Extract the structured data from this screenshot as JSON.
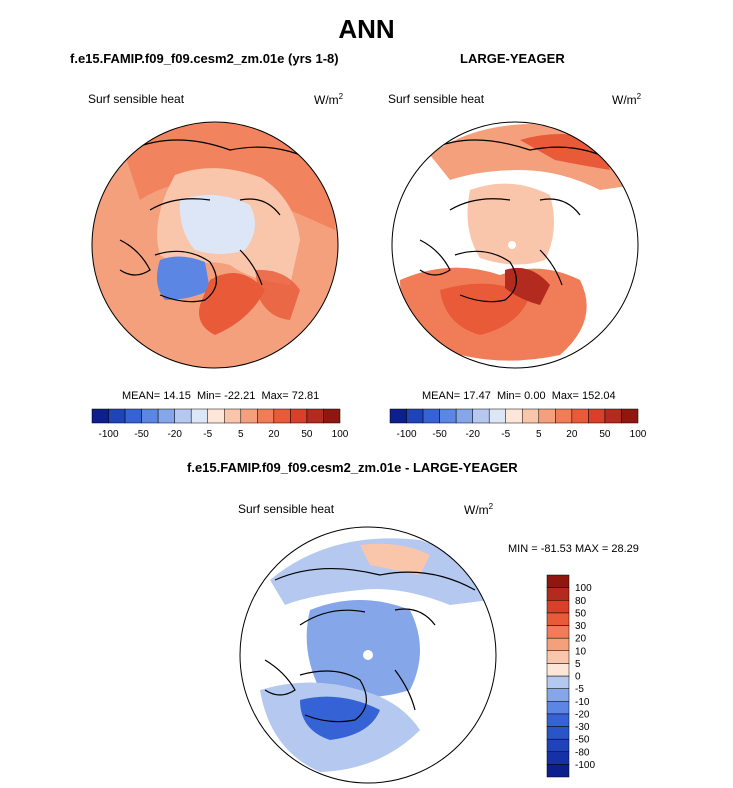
{
  "main_title": "ANN",
  "panels": [
    {
      "title": "f.e15.FAMIP.f09_f09.cesm2_zm.01e (yrs 1-8)",
      "variable": "Surf sensible heat",
      "units": "W/m",
      "units_exp": "2",
      "mean": "14.15",
      "min": "-22.21",
      "max": "72.81"
    },
    {
      "title": "LARGE-YEAGER",
      "variable": "Surf sensible heat",
      "units": "W/m",
      "units_exp": "2",
      "mean": "17.47",
      "min": "0.00",
      "max": "152.04"
    },
    {
      "title": "f.e15.FAMIP.f09_f09.cesm2_zm.01e - LARGE-YEAGER",
      "variable": "Surf sensible heat",
      "units": "W/m",
      "units_exp": "2",
      "min": "-81.53",
      "max": "28.29"
    }
  ],
  "stat_labels": {
    "mean": "MEAN=",
    "min": "Min=",
    "max": "Max=",
    "diff_min": "MIN =",
    "diff_max": "MAX ="
  },
  "chart_data": [
    {
      "type": "heatmap",
      "name": "model",
      "projection": "north polar stereographic",
      "title": "f.e15.FAMIP.f09_f09.cesm2_zm.01e (yrs 1-8)",
      "variable": "Surf sensible heat",
      "units": "W/m^2",
      "mean": 14.15,
      "min": -22.21,
      "max": 72.81,
      "colorbar": {
        "orientation": "horizontal",
        "levels": [
          -100,
          -50,
          -20,
          -5,
          5,
          20,
          50,
          100
        ],
        "tick_labels": [
          "-100",
          "-50",
          "-20",
          "-5",
          "5",
          "20",
          "50",
          "100"
        ],
        "colors": [
          "#0d1f8c",
          "#1f43b8",
          "#3563d6",
          "#5b86e3",
          "#86a6ea",
          "#b4c8f0",
          "#dde6f6",
          "#fde6d8",
          "#f9c6ab",
          "#f5a07d",
          "#f07d58",
          "#e85a38",
          "#d8402a",
          "#b32a1f",
          "#8f1710"
        ]
      },
      "fields": {
        "ocean_bg": "#f5a07d",
        "arctic_ocean": "#dde6f6",
        "cold_sea": "#5b86e3",
        "warm_current": "#e85a38",
        "land": "#f9c6ab",
        "hot_land": "#f07d58"
      }
    },
    {
      "type": "heatmap",
      "name": "observations",
      "projection": "north polar stereographic",
      "title": "LARGE-YEAGER",
      "variable": "Surf sensible heat",
      "units": "W/m^2",
      "mean": 17.47,
      "min": 0.0,
      "max": 152.04,
      "colorbar": {
        "orientation": "horizontal",
        "levels": [
          -100,
          -50,
          -20,
          -5,
          5,
          20,
          50,
          100
        ],
        "tick_labels": [
          "-100",
          "-50",
          "-20",
          "-5",
          "5",
          "20",
          "50",
          "100"
        ],
        "colors": [
          "#0d1f8c",
          "#1f43b8",
          "#3563d6",
          "#5b86e3",
          "#86a6ea",
          "#b4c8f0",
          "#dde6f6",
          "#fde6d8",
          "#f9c6ab",
          "#f5a07d",
          "#f07d58",
          "#e85a38",
          "#d8402a",
          "#b32a1f",
          "#8f1710"
        ]
      },
      "fields": {
        "ocean_bg": "#f5a07d",
        "arctic_ocean": "#f9c6ab",
        "warm_current": "#e85a38",
        "hot_core": "#b32a1f",
        "land": "#ffffff"
      }
    },
    {
      "type": "heatmap",
      "name": "difference",
      "projection": "north polar stereographic",
      "title": "f.e15.FAMIP.f09_f09.cesm2_zm.01e - LARGE-YEAGER",
      "variable": "Surf sensible heat",
      "units": "W/m^2",
      "min": -81.53,
      "max": 28.29,
      "colorbar": {
        "orientation": "vertical",
        "levels": [
          -100,
          -80,
          -50,
          -30,
          -20,
          -10,
          -5,
          0,
          5,
          10,
          20,
          30,
          50,
          80,
          100
        ],
        "tick_labels": [
          "-100",
          "-80",
          "-50",
          "-30",
          "-20",
          "-10",
          "-5",
          "0",
          "5",
          "10",
          "20",
          "30",
          "50",
          "80",
          "100"
        ],
        "colors": [
          "#0d1f8c",
          "#1630a8",
          "#1f43b8",
          "#2a55c8",
          "#3563d6",
          "#5b86e3",
          "#86a6ea",
          "#b4c8f0",
          "#fde6d8",
          "#f9c6ab",
          "#f5a07d",
          "#f07d58",
          "#e85a38",
          "#d8402a",
          "#b32a1f",
          "#8f1710"
        ]
      },
      "fields": {
        "ocean_bg": "#b4c8f0",
        "arctic_ocean": "#86a6ea",
        "warm_patch": "#f9c6ab",
        "cold_current": "#3563d6",
        "land": "#ffffff"
      }
    }
  ]
}
